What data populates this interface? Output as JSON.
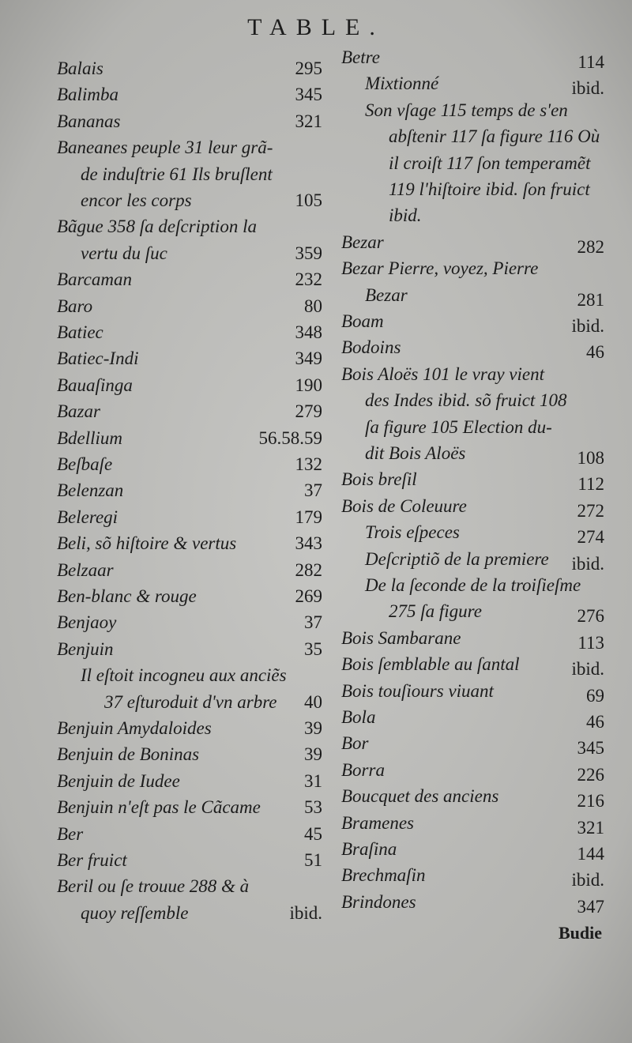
{
  "header": {
    "title": "TABLE."
  },
  "columns": [
    {
      "entries": [
        {
          "lines": [
            "Balais"
          ],
          "page": "295"
        },
        {
          "lines": [
            "Balimba"
          ],
          "page": "345"
        },
        {
          "lines": [
            "Bananas"
          ],
          "page": "321"
        },
        {
          "lines": [
            "Baneanes peuple 31 leur grã-",
            "de induſtrie 61 Ils bruſlent",
            "encor les corps"
          ],
          "page": "105"
        },
        {
          "lines": [
            "Bãgue 358 ſa deſcription la",
            "vertu du ſuc"
          ],
          "page": "359"
        },
        {
          "lines": [
            "Barcaman"
          ],
          "page": "232"
        },
        {
          "lines": [
            "Baro"
          ],
          "page": "80"
        },
        {
          "lines": [
            "Batiec"
          ],
          "page": "348"
        },
        {
          "lines": [
            "Batiec-Indi"
          ],
          "page": "349"
        },
        {
          "lines": [
            "Bauaſinga"
          ],
          "page": "190"
        },
        {
          "lines": [
            "Bazar"
          ],
          "page": "279"
        },
        {
          "lines": [
            "Bdellium"
          ],
          "page": "56.58.59"
        },
        {
          "lines": [
            "Beſbaſe"
          ],
          "page": "132"
        },
        {
          "lines": [
            "Belenzan"
          ],
          "page": "37"
        },
        {
          "lines": [
            "Beleregi"
          ],
          "page": "179"
        },
        {
          "lines": [
            "Beli, sõ hiſtoire & vertus"
          ],
          "page": "343"
        },
        {
          "lines": [
            "Belzaar"
          ],
          "page": "282"
        },
        {
          "lines": [
            "Ben-blanc & rouge"
          ],
          "page": "269"
        },
        {
          "lines": [
            "Benjaoy"
          ],
          "page": "37"
        },
        {
          "lines": [
            "Benjuin"
          ],
          "page": "35"
        },
        {
          "lines": [
            "Il eſtoit incogneu aux anciẽs",
            "37 eſturoduit d'vn arbre"
          ],
          "page": "40",
          "level": 2
        },
        {
          "lines": [
            "Benjuin Amydaloides"
          ],
          "page": "39"
        },
        {
          "lines": [
            "Benjuin de Boninas"
          ],
          "page": "39"
        },
        {
          "lines": [
            "Benjuin de Iudee"
          ],
          "page": "31"
        },
        {
          "lines": [
            "Benjuin n'eſt pas le Cãcame"
          ],
          "page": "53"
        },
        {
          "lines": [
            "Ber"
          ],
          "page": "45"
        },
        {
          "lines": [
            "Ber fruict"
          ],
          "page": "51"
        },
        {
          "lines": [
            "Beril ou ſe trouue 288 & à",
            "quoy reſſemble"
          ],
          "page": "ibid."
        }
      ]
    },
    {
      "entries": [
        {
          "lines": [
            "Betre"
          ],
          "page": "114"
        },
        {
          "lines": [
            "Mixtionné"
          ],
          "page": "ibid.",
          "level": 2
        },
        {
          "lines": [
            "Son vſage 115 temps de s'en",
            "abſtenir 117 ſa figure 116 Où",
            "il croiſt 117 ſon temperamẽt",
            "119 l'hiſtoire ibid. ſon fruict",
            "ibid."
          ],
          "level": 2
        },
        {
          "lines": [
            "Bezar"
          ],
          "page": "282"
        },
        {
          "lines": [
            "Bezar Pierre, voyez, Pierre",
            "Bezar"
          ],
          "page": "281"
        },
        {
          "lines": [
            "Boam"
          ],
          "page": "ibid."
        },
        {
          "lines": [
            "Bodoins"
          ],
          "page": "46"
        },
        {
          "lines": [
            "Bois Aloës 101 le vray vient",
            "des Indes ibid. sõ fruict 108",
            "ſa figure 105 Election du-",
            "dit Bois Aloës"
          ],
          "page": "108"
        },
        {
          "lines": [
            "Bois breſil"
          ],
          "page": "112"
        },
        {
          "lines": [
            "Bois de Coleuure"
          ],
          "page": "272"
        },
        {
          "lines": [
            "Trois eſpeces"
          ],
          "page": "274",
          "level": 2
        },
        {
          "lines": [
            "Deſcriptiõ de la premiere"
          ],
          "page": "ibid.",
          "level": 2
        },
        {
          "lines": [
            "De la ſeconde de la troiſieſme",
            "275 ſa figure"
          ],
          "page": "276",
          "level": 2
        },
        {
          "lines": [
            "Bois Sambarane"
          ],
          "page": "113"
        },
        {
          "lines": [
            "Bois ſemblable au ſantal"
          ],
          "page": "ibid."
        },
        {
          "lines": [
            "Bois touſiours viuant"
          ],
          "page": "69"
        },
        {
          "lines": [
            "Bola"
          ],
          "page": "46"
        },
        {
          "lines": [
            "Bor"
          ],
          "page": "345"
        },
        {
          "lines": [
            "Borra"
          ],
          "page": "226"
        },
        {
          "lines": [
            "Boucquet des anciens"
          ],
          "page": "216"
        },
        {
          "lines": [
            "Bramenes"
          ],
          "page": "321"
        },
        {
          "lines": [
            "Braſina"
          ],
          "page": "144"
        },
        {
          "lines": [
            "Brechmaſin"
          ],
          "page": "ibid."
        },
        {
          "lines": [
            "Brindones"
          ],
          "page": "347"
        }
      ]
    }
  ],
  "catchword": "Budie"
}
